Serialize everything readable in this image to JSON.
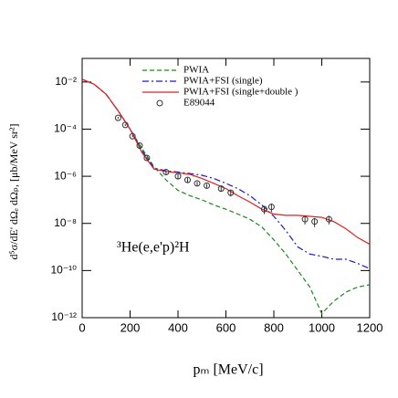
{
  "chart_data": {
    "type": "line",
    "xlabel": "pₘ [MeV/c]",
    "ylabel": "d⁵σ/dE' dΩₑ dΩₚ, [μb/MeV sr²]",
    "annotation": "³He(e,e'p)²H",
    "log_y": true,
    "xlim": [
      0,
      1200
    ],
    "ylim": [
      1e-12,
      0.1
    ],
    "xticks": [
      0,
      200,
      400,
      600,
      800,
      1000,
      1200
    ],
    "yticks": [
      {
        "value": 1e-12,
        "label": "10⁻¹²"
      },
      {
        "value": 1e-10,
        "label": "10⁻¹⁰"
      },
      {
        "value": 1e-08,
        "label": "10⁻⁸"
      },
      {
        "value": 1e-06,
        "label": "10⁻⁶"
      },
      {
        "value": 0.0001,
        "label": "10⁻⁴"
      },
      {
        "value": 0.01,
        "label": "10⁻²"
      }
    ],
    "legend": "top-left",
    "x": [
      0,
      50,
      100,
      150,
      200,
      250,
      300,
      350,
      400,
      450,
      500,
      550,
      600,
      650,
      700,
      750,
      800,
      850,
      900,
      950,
      1000,
      1050,
      1100,
      1150,
      1200
    ],
    "series": [
      {
        "name": "PWIA",
        "color": "#1a8a1a",
        "dash": "dashed",
        "values": [
          0.013,
          0.008,
          0.003,
          0.0006,
          0.0001,
          1.5e-05,
          2.5e-06,
          7e-07,
          2.5e-07,
          1.5e-07,
          1e-07,
          6e-08,
          4e-08,
          2.5e-08,
          1.5e-08,
          7e-09,
          2e-09,
          5e-10,
          1e-10,
          2e-11,
          1.5e-12,
          5e-12,
          1.2e-11,
          2e-11,
          2.5e-11
        ]
      },
      {
        "name": "PWIA+FSI (single)",
        "color": "#1a1acc",
        "dash": "dashdot",
        "values": [
          0.013,
          0.008,
          0.003,
          0.0006,
          0.0001,
          1.2e-05,
          2.2e-06,
          1.7e-06,
          1.5e-06,
          1.3e-06,
          1.1e-06,
          8e-07,
          5e-07,
          3e-07,
          1.5e-07,
          6e-08,
          2e-08,
          5e-09,
          1e-09,
          5e-10,
          4e-10,
          3e-10,
          3e-10,
          2e-10,
          1.2e-10
        ]
      },
      {
        "name": "PWIA+FSI (single+double )",
        "color": "#e02020",
        "dash": "solid",
        "values": [
          0.013,
          0.008,
          0.003,
          0.0006,
          0.0001,
          1e-05,
          2e-06,
          1.6e-06,
          1.4e-06,
          1.2e-06,
          8e-07,
          5e-07,
          3e-07,
          1.5e-07,
          8e-08,
          4e-08,
          2.5e-08,
          2.2e-08,
          2.2e-08,
          2e-08,
          1.8e-08,
          1.2e-08,
          6e-09,
          2.5e-09,
          1.3e-09
        ]
      },
      {
        "name": "E89044",
        "color": "#333333",
        "marker": "circle",
        "x": [
          150,
          180,
          210,
          240,
          270,
          350,
          400,
          440,
          480,
          520,
          580,
          620,
          760,
          790,
          930,
          970,
          1030
        ],
        "values": [
          0.0003,
          0.00015,
          5e-05,
          2e-05,
          6e-06,
          1.5e-06,
          1e-06,
          7e-07,
          5e-07,
          4e-07,
          3e-07,
          2e-07,
          4e-08,
          5e-08,
          1.5e-08,
          1.2e-08,
          1.5e-08
        ],
        "errors": [
          3e-05,
          1.5e-05,
          5e-06,
          2e-06,
          6e-07,
          3e-07,
          2e-07,
          1.5e-07,
          1e-07,
          8e-08,
          8e-08,
          6e-08,
          1.5e-08,
          2e-08,
          6e-09,
          5e-09,
          6e-09
        ]
      }
    ]
  }
}
